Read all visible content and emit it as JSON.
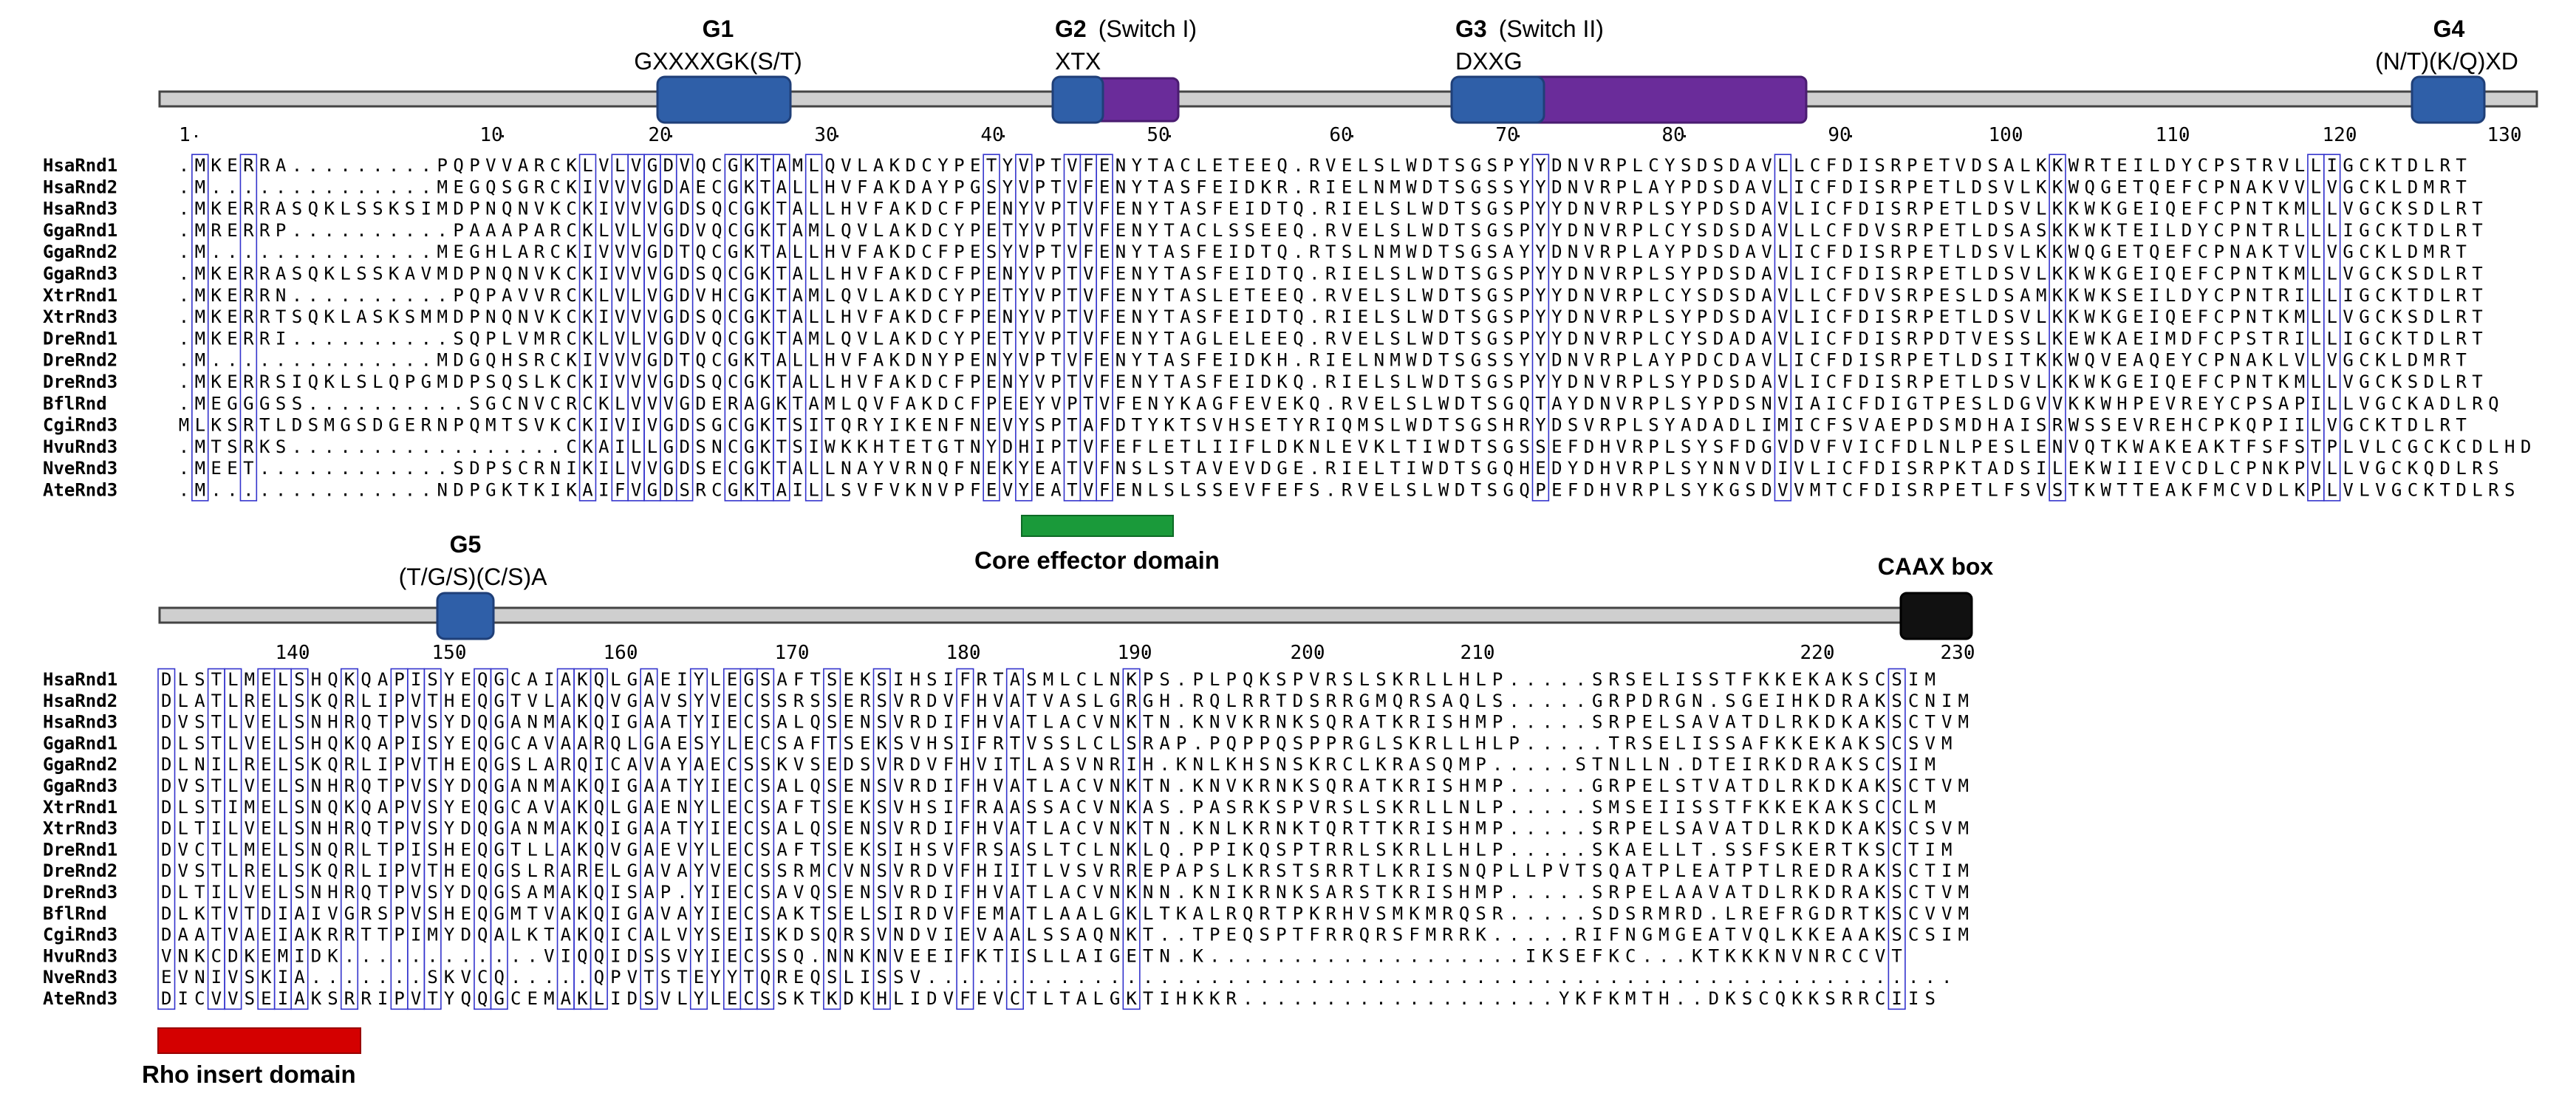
{
  "motifs_top": [
    {
      "label": "G1",
      "sub": "GXXXXGK(S/T)"
    },
    {
      "label": "G2",
      "extra": "(Switch I)",
      "sub": "XTX"
    },
    {
      "label": "G3",
      "extra": "(Switch II)",
      "sub": "DXXG"
    },
    {
      "label": "G4",
      "sub": "(N/T)(K/Q)XD"
    }
  ],
  "motifs_bottom": [
    {
      "label": "G5",
      "sub": "(T/G/S)(C/S)A"
    },
    {
      "label": "CAAX box"
    }
  ],
  "domains": {
    "core_effector": "Core effector domain",
    "rho_insert": "Rho insert domain"
  },
  "ruler_top": [
    "1",
    "10",
    "20",
    "30",
    "40",
    "50",
    "60",
    "70",
    "80",
    "90",
    "100",
    "110",
    "120",
    "130"
  ],
  "ruler_bottom": [
    "140",
    "150",
    "160",
    "170",
    "180",
    "190",
    "200",
    "210",
    "220",
    "230"
  ],
  "colors": {
    "conserved_bg": "#e60000",
    "similar_text": "#e60000",
    "box_border": "#3333cc",
    "blue_feature": "#2f5fa8",
    "purple_feature": "#6a2c9a",
    "core_effector": "#1a9a3a",
    "rho_insert": "#d40000",
    "caax": "#111111"
  },
  "sequences": {
    "names": [
      "HsaRnd1",
      "HsaRnd2",
      "HsaRnd3",
      "GgaRnd1",
      "GgaRnd2",
      "GgaRnd3",
      "XtrRnd1",
      "XtrRnd3",
      "DreRnd1",
      "DreRnd2",
      "DreRnd3",
      "BflRnd",
      "CgiRnd3",
      "HvuRnd3",
      "NveRnd3",
      "AteRnd3"
    ],
    "block1": [
      ".MKERRA.........PQPVVARCKLVLVGDVQCGKTAMLQVLAKDCYPETYVPTVFENYTACLETEEQ.RVELSLWDTSGSPYYDNVRPLCYSDSDAVLLCFDISRPETVDSALKKWRTEILDYCPSTRVLLIGCKTDLRT",
      ".M..............MEGQSGRCKIVVVGDAECGKTALLHVFAKDAYPGSYVPTVFENYTASFEIDKR.RIELNMWDTSGSSYYDNVRPLAYPDSDAVLICFDISRPETLDSVLKKWQGETQEFCPNAKVVLVGCKLDMRT",
      ".MKERRASQKLSSKSIMDPNQNVKCKIVVVGDSQCGKTALLHVFAKDCFPENYVPTVFENYTASFEIDTQ.RIELSLWDTSGSPYYDNVRPLSYPDSDAVLICFDISRPETLDSVLKKWKGEIQEFCPNTKMLLVGCKSDLRT",
      ".MRERRP..........PAAAPARCKLVLVGDVQCGKTAMLQVLAKDCYPETYVPTVFENYTACLSSEEQ.RVELSLWDTSGSPYYDNVRPLCYSDSDAVLLCFDVSRPETLDSASKKWKTEILDYCPNTRLLLIGCKTDLRT",
      ".M..............MEGHLARCKIVVVGDTQCGKTALLHVFAKDCFPESYVPTVFENYTASFEIDTQ.RTSLNMWDTSGSAYYDNVRPLAYPDSDAVLICFDISRPETLDSVLKKWQGETQEFCPNAKTVLVGCKLDMRT",
      ".MKERRASQKLSSKAVMDPNQNVKCKIVVVGDSQCGKTALLHVFAKDCFPENYVPTVFENYTASFEIDTQ.RIELSLWDTSGSPYYDNVRPLSYPDSDAVLICFDISRPETLDSVLKKWKGEIQEFCPNTKMLLVGCKSDLRT",
      ".MKERRN..........PQPAVVRCKLVLVGDVHCGKTAMLQVLAKDCYPETYVPTVFENYTASLETEEQ.RVELSLWDTSGSPYYDNVRPLCYSDSDAVLLCFDVSRPESLDSAMKKWKSEILDYCPNTRILLIGCKTDLRT",
      ".MKERRTSQKLASKSMMDPNQNVKCKIVVVGDSQCGKTALLHVFAKDCFPENYVPTVFENYTASFEIDTQ.RIELSLWDTSGSPYYDNVRPLSYPDSDAVLICFDISRPETLDSVLKKWKGEIQEFCPNTKMLLVGCKSDLRT",
      ".MKERRI..........SQPLVMRCKLVLVGDVQCGKTAMLQVLAKDCYPETYVPTVFENYTAGLELEEQ.RVELSLWDTSGSPYYDNVRPLCYSDADAVLICFDISRPDTVESSLKEWKAEIMDFCPSTRILLIGCKTDLRT",
      ".M..............MDGQHSRCKIVVVGDTQCGKTALLHVFAKDNYPENYVPTVFENYTASFEIDKH.RIELNMWDTSGSSYYDNVRPLAYPDCDAVLICFDISRPETLDSITKKWQVEAQEYCPNAKLVLVGCKLDMRT",
      ".MKERRSIQKLSLQPGMDPSQSLKCKIVVVGDSQCGKTALLHVFAKDCFPENYVPTVFENYTASFEIDKQ.RIELSLWDTSGSPYYDNVRPLSYPDSDAVLICFDISRPETLDSVLKKWKGEIQEFCPNTKMLLVGCKSDLRT",
      ".MEGGGSS..........SGCNVCRCKLVVVGDERAGKTAMLQVFAKDCFPEEYVPTVFENYKAGFEVEKQ.RVELSLWDTSGQTAYDNVRPLSYPDSNVIAICFDIGTPESLDGVVKKWHPEVREYCPSAPILLVGCKADLRQ",
      "MLKSRTLDSMGSDGERNPQMTSVKCKIVIVGDSGCGKTSITQRYIKENFNEVYSPTAFDTYKTSVHSETYRIQMSLWDTSGSHRYDSVRPLSYADADLIMICFSVAEPDSMDHAISRWSSEVREHCPKQPIILVGCKTDLRT",
      ".MTSRKS.................CKAILLGDSNCGKTSIWKKHTETGTNYDHIPTVFEFLETLIIFLDKNLEVKLTIWDTSGSSEFDHVRPLSYSFDGVDVFVICFDLNLPESLENVQTKWAKEAKTFSFSTPLVLCGCKCDLHD",
      ".MEET............SDPSCRNIKILVVGDSECGKTALLNAYVRNQFNEKYEATVFNSLSTAVEVDGE.RIELTIWDTSGQHEDYDHVRPLSYNNVDIVLICFDISRPKTADSILEKWIIEVCDLCPNKPVLLVGCKQDLRS",
      ".M..............NDPGKTKIKAIFVGDSRCGKTAILLSVFVKNVPFEVYEATVFENLSLSSEVFEFS.RVELSLWDTSGQPEFDHVRPLSYKGSDVVMTCFDISRPETLFSVSTKWTTEAKFMCVDLKPLVLVGCKTDLRS"
    ],
    "block2": [
      "DLSTLMELSHQKQAPISYEQGCAIAKQLGAEIYLEGSAFTSEKSIHSIFRTASMLCLNKPS.PLPQKSPVRSLSKRLLHLP.....SRSELISSTFKKEKAKSCSIM",
      "DLATLRELSKQRLIPVTHEQGTVLAKQVGAVSYVECSSRSSERSVRDVFHVATVASLGRGH.RQLRRTDSRRGMQRSAQLS.....GRPDRGN.SGEIHKDRAKSCNIM",
      "DVSTLVELSNHRQTPVSYDQGANMAKQIGAATYIECSALQSENSVRDIFHVATLACVNKTN.KNVKRNKSQRATKRISHMP.....SRPELSAVATDLRKDKAKSCTVM",
      "DLSTLVELSHQKQAPISYEQGCAVAARQLGAESYLECSAFTSEKSVHSIFRTVSSLCLSRAP.PQPPQSPPRGLSKRLLHLP.....TRSELISSAFKKEKAKSCSVM",
      "DLNILRELSKQRLIPVTHEQGSLARQICAVAYAECSSKVSEDSVRDVFHVITLASVNRIH.KNLKHSNSKRCLKRASQMP.....STNLLN.DTEIRKDRAKSCSIM",
      "DVSTLVELSNHRQTPVSYDQGANMAKQIGAATYIECSALQSENSVRDIFHVATLACVNKTN.KNVKRNKSQRATKRISHMP.....GRPELSTVATDLRKDKAKSCTVM",
      "DLSTIMELSNQKQAPVSYEQGCAVAKQLGAENYLECSAFTSEKSVHSIFRAASSACVNKAS.PASRKSPVRSLSKRLLNLP.....SMSEIISSTFKKEKAKSCCLM",
      "DLTILVELSNHRQTPVSYDQGANMAKQIGAATYIECSALQSENSVRDIFHVATLACVNKTN.KNLKRNKTQRTTKRISHMP.....SRPELSAVATDLRKDKAKSCSVM",
      "DVCTLMELSNQRLTPISHEQGTLLAKQVGAEVYLECSAFTSEKSIHSVFRSASLTCLNKLQ.PPIKQSPTRRLSKRLLHLP.....SKAELLT.SSFSKERTKSCTIM",
      "DVSTLRELSKQRLIPVTHEQGSLRARELGAVAYVECSSRMCVNSVRDVFHIITLVSVRREPAPSLKRSTSRRTLKRISNQPLLPVTSQATPLEATPTLREDRAKSCTIM",
      "DLTILVELSNHRQTPVSYDQGSAMAKQISAP.YIECSAVQSENSVRDIFHVATLACVNKNN.KNIKRNKSARSTKRISHMP.....SRPELAAVATDLRKDRAKSCTVM",
      "DLKTVTDIAIVGRSPVSHEQGMTVAKQIGAVAYIECSAKTSELSIRDVFEMATLAALGKLTKALRQRTPKRHVSMKMRQSR.....SDSRMRD.LREFRGDRTKSCVVM",
      "DAATVAEIAKRRTTPIMYDQALKTAKQICALVYSEISKDSQRSVNDVIEVAALSSAQNKT..TPEQSPTFRRQRSFMRRK.....RIFNGMGEATVQLKKEAAKSCSIM",
      "VNKCDKEMIDK............VIQQIDSSVYIECSSQ.NNKNVEEIFKTISLLAIGETN.K...................IKSEFKC...KTKKKNVNRCCVT",
      "EVNIVSKIA.......SKVCQ.....QPVTSTEYYTQREQSLISSV..............................................................",
      "DICVVSEIAKSRRIPVTYQQGCEMAKLIDSVLYLECSSKTKDKHLIDVFEVCTLTALGKTIHKKR...................YKFKMTH..DKSCQKKSRRCIIS"
    ]
  }
}
